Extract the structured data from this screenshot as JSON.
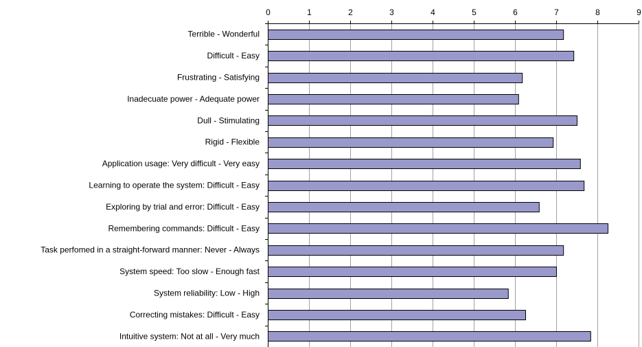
{
  "chart_data": {
    "type": "bar",
    "orientation": "horizontal",
    "x_axis_position": "top",
    "grid": true,
    "legend": "none",
    "bar_color": "#9999cc",
    "xlim": [
      0,
      9
    ],
    "xticks": [
      "0",
      "1",
      "2",
      "3",
      "4",
      "5",
      "6",
      "7",
      "8",
      "9"
    ],
    "categories": [
      "Terrible - Wonderful",
      "Difficult - Easy",
      "Frustrating - Satisfying",
      "Inadecuate power - Adequate power",
      "Dull - Stimulating",
      "Rigid - Flexible",
      "Application usage: Very difficult - Very easy",
      "Learning to operate the system: Difficult - Easy",
      "Exploring by trial and error: Difficult - Easy",
      "Remembering commands: Difficult - Easy",
      "Task perfomed in a straight-forward manner: Never - Always",
      "System speed: Too slow - Enough fast",
      "System reliability: Low - High",
      "Correcting mistakes: Difficult - Easy",
      "Intuitive system: Not at all - Very much"
    ],
    "values": [
      7.17,
      7.42,
      6.17,
      6.08,
      7.5,
      6.92,
      7.58,
      7.67,
      6.58,
      8.25,
      7.17,
      7.0,
      5.83,
      6.25,
      7.83
    ]
  }
}
